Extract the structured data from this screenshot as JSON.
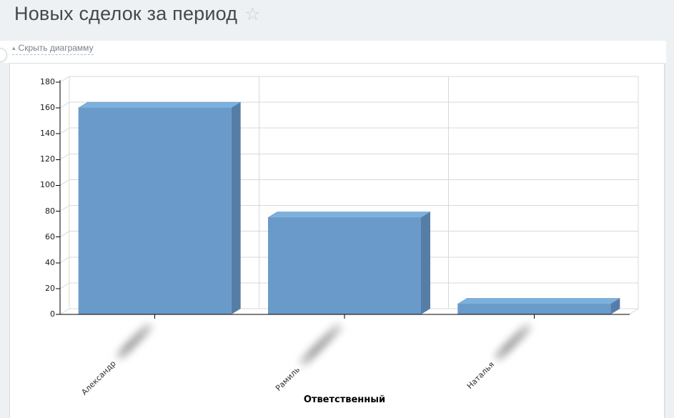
{
  "header": {
    "title": "Новых сделок за период",
    "favorite_star_glyph": "☆"
  },
  "toolbar": {
    "collapse_glyph": "▴",
    "hide_chart_label": "Скрыть диаграмму"
  },
  "chart_data": {
    "type": "bar",
    "style": "3d-columns",
    "title": "",
    "categories": [
      "Александр",
      "Рамиль",
      "Наталья"
    ],
    "category_surnames_redacted": true,
    "values": [
      160,
      75,
      8
    ],
    "xlabel": "Ответственный",
    "ylabel": "",
    "ylim": [
      0,
      180
    ],
    "ytick_step": 20,
    "grid": true,
    "legend": false,
    "colors": {
      "bar_front": "#6a9aca",
      "bar_top": "#7db0dd",
      "bar_side": "#567da6",
      "grid_line": "#d8d8d8",
      "axis_line": "#000000",
      "page_background": "#edf1f4",
      "panel_background": "#ffffff"
    }
  }
}
